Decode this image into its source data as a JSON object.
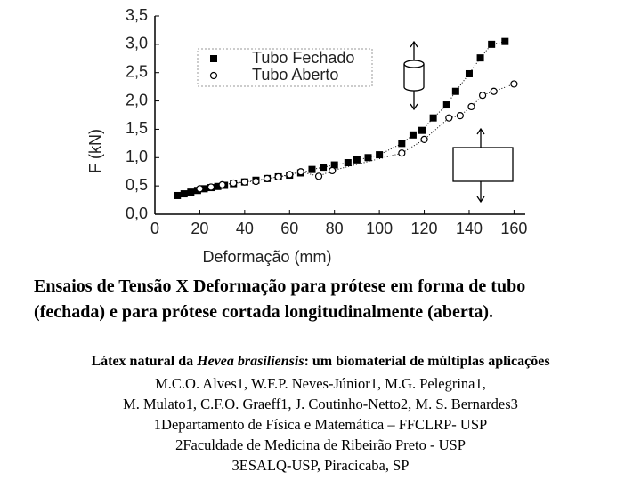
{
  "chart_data": {
    "type": "scatter",
    "ylabel": "F (kN)",
    "xlabel": "Deformação (mm)",
    "xlim": [
      0,
      165
    ],
    "ylim": [
      0,
      3.5
    ],
    "xticks": [
      0,
      20,
      40,
      60,
      80,
      100,
      120,
      140,
      160
    ],
    "yticks": [
      {
        "value": 0,
        "label": "0,0"
      },
      {
        "value": 0.5,
        "label": "0,5"
      },
      {
        "value": 1,
        "label": "1,0"
      },
      {
        "value": 1.5,
        "label": "1,5"
      },
      {
        "value": 2,
        "label": "2,0"
      },
      {
        "value": 2.5,
        "label": "2,5"
      },
      {
        "value": 3,
        "label": "3,0"
      },
      {
        "value": 3.5,
        "label": "3,5"
      }
    ],
    "series": [
      {
        "name": "Tubo Fechado",
        "color": "#000000",
        "marker": "square",
        "x": [
          10,
          13,
          16,
          19,
          22,
          25,
          28,
          31,
          35,
          40,
          45,
          50,
          55,
          60,
          65,
          70,
          75,
          80,
          86,
          90,
          95,
          100,
          110,
          115,
          119,
          124,
          130,
          134,
          140,
          145,
          150,
          156
        ],
        "values": [
          0.33,
          0.36,
          0.39,
          0.42,
          0.45,
          0.47,
          0.49,
          0.51,
          0.54,
          0.57,
          0.6,
          0.63,
          0.66,
          0.69,
          0.73,
          0.79,
          0.83,
          0.87,
          0.91,
          0.96,
          1.0,
          1.05,
          1.25,
          1.4,
          1.48,
          1.7,
          1.93,
          2.17,
          2.48,
          2.76,
          3.0,
          3.05
        ]
      },
      {
        "name": "Tubo Aberto",
        "color": "#000000",
        "marker": "circle",
        "x": [
          20,
          25,
          30,
          35,
          40,
          45,
          50,
          55,
          60,
          65,
          73,
          79,
          110,
          120,
          131,
          136,
          141,
          146,
          151,
          160
        ],
        "values": [
          0.45,
          0.48,
          0.52,
          0.55,
          0.57,
          0.58,
          0.63,
          0.66,
          0.7,
          0.75,
          0.67,
          0.77,
          1.08,
          1.32,
          1.7,
          1.74,
          1.9,
          2.1,
          2.17,
          2.3
        ]
      }
    ]
  },
  "caption": [
    "Ensaios de Tensão X Deformação para prótese em forma de tubo",
    "(fechada) e para prótese cortada longitudinalmente (aberta)."
  ],
  "paper": {
    "title": [
      "Látex natural da ",
      "Hevea brasiliensis",
      ": um biomaterial de múltiplas aplicações"
    ],
    "authors": [
      "M.C.O. Alves1, W.F.P. Neves-Júnior1, M.G. Pelegrina1,",
      "M. Mulato1, C.F.O. Graeff1, J. Coutinho-Netto2, M. S. Bernardes3",
      "1Departamento de Física e Matemática – FFCLRP- USP",
      "2Faculdade de Medicina de Ribeirão Preto - USP",
      "3ESALQ-USP, Piracicaba, SP"
    ]
  }
}
